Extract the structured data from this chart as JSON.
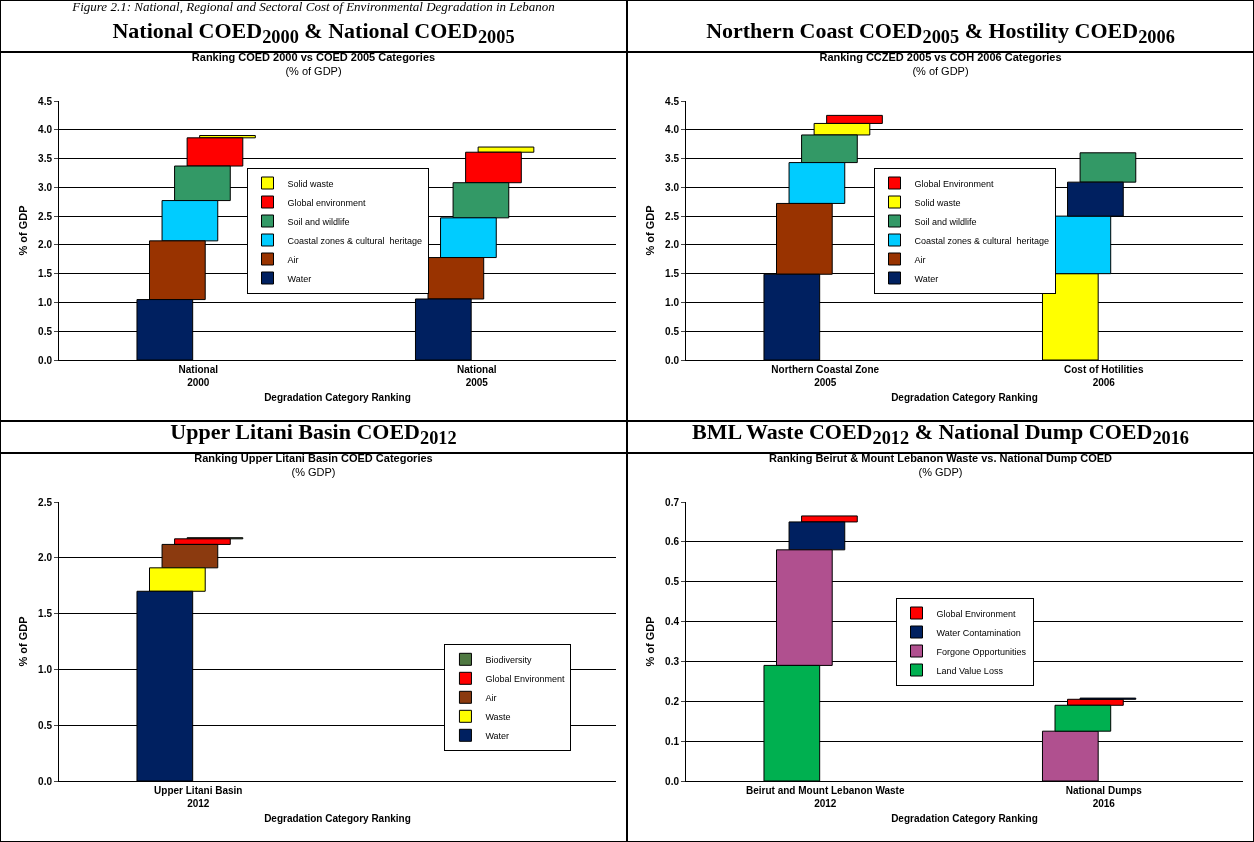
{
  "chart_data": [
    {
      "type": "bar",
      "title": "Ranking COED 2000 vs COED 2005 Categories",
      "subtitle": "(% of GDP)",
      "annotations": [
        "Figure 2.1: National, Regional and Sectoral Cost of Environmental Degradation in Lebanon",
        "National COED$_{2000}$ & National COED$_{2005}$"
      ],
      "xlabel": "Degradation Category Ranking",
      "ylabel": "% of GDP",
      "categories": [
        "National\n2000",
        "National\n2005"
      ],
      "ylim": [
        0,
        4.5
      ],
      "yticks": [
        {
          "value": 0,
          "label": "0.0"
        },
        {
          "value": 0.5,
          "label": "0.5"
        },
        {
          "value": 1,
          "label": "1.0"
        },
        {
          "value": 1.5,
          "label": "1.5"
        },
        {
          "value": 2,
          "label": "2.0"
        },
        {
          "value": 2.5,
          "label": "2.5"
        },
        {
          "value": 3,
          "label": "3.0"
        },
        {
          "value": 3.5,
          "label": "3.5"
        },
        {
          "value": 4,
          "label": "4.0"
        },
        {
          "value": 4.5,
          "label": "4.5"
        }
      ],
      "grid": "y",
      "legend": "center",
      "series": [
        {
          "name": "Solid waste",
          "color": "#ffff00",
          "base": [
            3.86,
            3.61
          ],
          "values": [
            0.04,
            0.09
          ]
        },
        {
          "name": "Global environment",
          "color": "#ff0000",
          "base": [
            3.37,
            3.08
          ],
          "values": [
            0.49,
            0.53
          ]
        },
        {
          "name": "Soil and wildlife",
          "color": "#339966",
          "base": [
            2.77,
            2.47
          ],
          "values": [
            0.6,
            0.61
          ]
        },
        {
          "name": "Coastal zones & cultural  heritage",
          "color": "#00ccff",
          "base": [
            2.07,
            1.78
          ],
          "values": [
            0.7,
            0.69
          ]
        },
        {
          "name": "Air",
          "color": "#993300",
          "base": [
            1.05,
            1.06
          ],
          "values": [
            1.02,
            0.72
          ]
        },
        {
          "name": "Water",
          "color": "#002060",
          "base": [
            0,
            0
          ],
          "values": [
            1.05,
            1.06
          ]
        }
      ]
    },
    {
      "type": "bar",
      "title": "Ranking CCZED 2005 vs COH 2006 Categories",
      "subtitle": "(% of GDP)",
      "annotations": [
        "Northern Coast COED$_{2005}$ & Hostility COED$_{2006}$"
      ],
      "xlabel": "Degradation Category Ranking",
      "ylabel": "% of GDP",
      "categories": [
        "Northern Coastal Zone\n2005",
        "Cost of Hotilities\n2006"
      ],
      "ylim": [
        0,
        4.5
      ],
      "yticks": [
        {
          "value": 0,
          "label": "0.0"
        },
        {
          "value": 0.5,
          "label": "0.5"
        },
        {
          "value": 1,
          "label": "1.0"
        },
        {
          "value": 1.5,
          "label": "1.5"
        },
        {
          "value": 2,
          "label": "2.0"
        },
        {
          "value": 2.5,
          "label": "2.5"
        },
        {
          "value": 3,
          "label": "3.0"
        },
        {
          "value": 3.5,
          "label": "3.5"
        },
        {
          "value": 4,
          "label": "4.0"
        },
        {
          "value": 4.5,
          "label": "4.5"
        }
      ],
      "grid": "y",
      "legend": "center",
      "series": [
        {
          "name": "Global Environment",
          "color": "#ff0000",
          "base": [
            4.11,
            null
          ],
          "values": [
            0.14,
            null
          ]
        },
        {
          "name": "Solid waste",
          "color": "#ffff00",
          "base": [
            3.91,
            0
          ],
          "values": [
            0.2,
            1.5
          ]
        },
        {
          "name": "Soil and wildlife",
          "color": "#339966",
          "base": [
            3.43,
            3.09
          ],
          "values": [
            0.48,
            0.51
          ]
        },
        {
          "name": "Coastal zones & cultural  heritage",
          "color": "#00ccff",
          "base": [
            2.72,
            1.5
          ],
          "values": [
            0.71,
            1.0
          ]
        },
        {
          "name": "Air",
          "color": "#993300",
          "base": [
            1.49,
            null
          ],
          "values": [
            1.23,
            null
          ]
        },
        {
          "name": "Water",
          "color": "#002060",
          "base": [
            0,
            2.5
          ],
          "values": [
            1.49,
            0.59
          ]
        }
      ]
    },
    {
      "type": "bar",
      "title": "Ranking Upper Litani Basin COED Categories",
      "subtitle": "(% GDP)",
      "annotations": [
        "Upper Litani Basin COED$_{2012}$"
      ],
      "xlabel": "Degradation Category Ranking",
      "ylabel": "% of GDP",
      "categories": [
        "Upper Litani Basin\n2012",
        null
      ],
      "ylim": [
        0,
        2.5
      ],
      "yticks": [
        {
          "value": 0,
          "label": "0.0"
        },
        {
          "value": 0.5,
          "label": "0.5"
        },
        {
          "value": 1,
          "label": "1.0"
        },
        {
          "value": 1.5,
          "label": "1.5"
        },
        {
          "value": 2,
          "label": "2.0"
        },
        {
          "value": 2.5,
          "label": "2.5"
        }
      ],
      "grid": "y",
      "legend": "right",
      "series": [
        {
          "name": "Biodiversity",
          "color": "#4f7942",
          "base": [
            2.17,
            null
          ],
          "values": [
            0.01,
            null
          ]
        },
        {
          "name": "Global Environment",
          "color": "#ff0000",
          "base": [
            2.12,
            null
          ],
          "values": [
            0.05,
            null
          ]
        },
        {
          "name": "Air",
          "color": "#8b3a0f",
          "base": [
            1.91,
            null
          ],
          "values": [
            0.21,
            null
          ]
        },
        {
          "name": "Waste",
          "color": "#ffff00",
          "base": [
            1.7,
            null
          ],
          "values": [
            0.21,
            null
          ]
        },
        {
          "name": "Water",
          "color": "#002060",
          "base": [
            0,
            null
          ],
          "values": [
            1.7,
            null
          ]
        }
      ]
    },
    {
      "type": "bar",
      "title": "Ranking Beirut & Mount Lebanon Waste vs. National Dump COED",
      "subtitle": "(% GDP)",
      "annotations": [
        "BML Waste COED$_{2012}$ & National Dump COED$_{2016}$"
      ],
      "xlabel": "Degradation Category Ranking",
      "ylabel": "% of GDP",
      "categories": [
        "Beirut and Mount Lebanon Waste\n2012",
        "National Dumps\n2016"
      ],
      "ylim": [
        0,
        0.7
      ],
      "yticks": [
        {
          "value": 0,
          "label": "0.0"
        },
        {
          "value": 0.1,
          "label": "0.1"
        },
        {
          "value": 0.2,
          "label": "0.2"
        },
        {
          "value": 0.3,
          "label": "0.3"
        },
        {
          "value": 0.4,
          "label": "0.4"
        },
        {
          "value": 0.5,
          "label": "0.5"
        },
        {
          "value": 0.6,
          "label": "0.6"
        },
        {
          "value": 0.7,
          "label": "0.7"
        }
      ],
      "grid": "y",
      "legend": "center",
      "series": [
        {
          "name": "Global Environment",
          "color": "#ff0000",
          "base": [
            0.65,
            0.19
          ],
          "values": [
            0.015,
            0.015
          ]
        },
        {
          "name": "Water Contamination",
          "color": "#002060",
          "base": [
            0.58,
            0.205
          ],
          "values": [
            0.07,
            0.003
          ]
        },
        {
          "name": "Forgone Opportunities",
          "color": "#b0508f",
          "base": [
            0.29,
            0
          ],
          "values": [
            0.29,
            0.125
          ]
        },
        {
          "name": "Land Value Loss",
          "color": "#00b050",
          "base": [
            0,
            0.125
          ],
          "values": [
            0.29,
            0.065
          ]
        }
      ]
    }
  ]
}
